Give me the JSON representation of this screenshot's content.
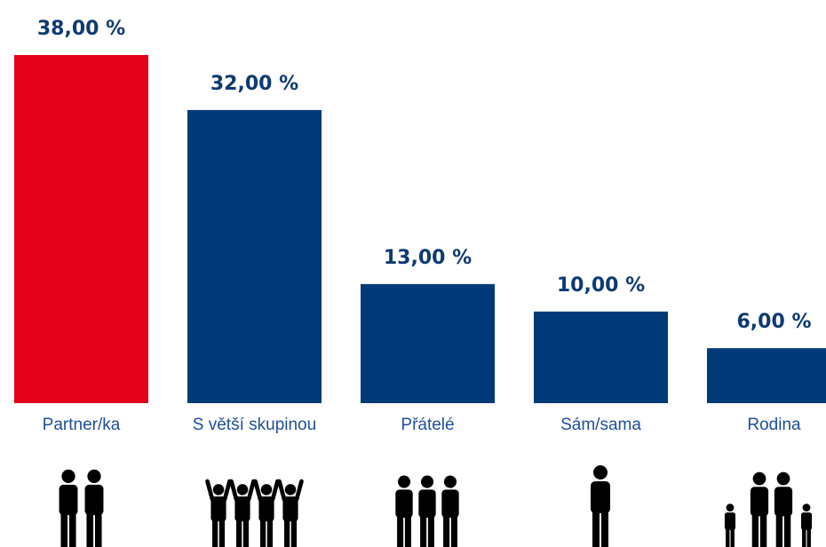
{
  "chart_data": {
    "type": "bar",
    "categories": [
      "Partner/ka",
      "S větší skupinou",
      "Přátelé",
      "Sám/sama",
      "Rodina"
    ],
    "values": [
      38,
      32,
      13,
      10,
      6
    ],
    "value_labels": [
      "38,00 %",
      "32,00 %",
      "13,00 %",
      "10,00 %",
      "6,00 %"
    ],
    "colors": [
      "#e2001a",
      "#003a78",
      "#003a78",
      "#003a78",
      "#003a78"
    ]
  }
}
